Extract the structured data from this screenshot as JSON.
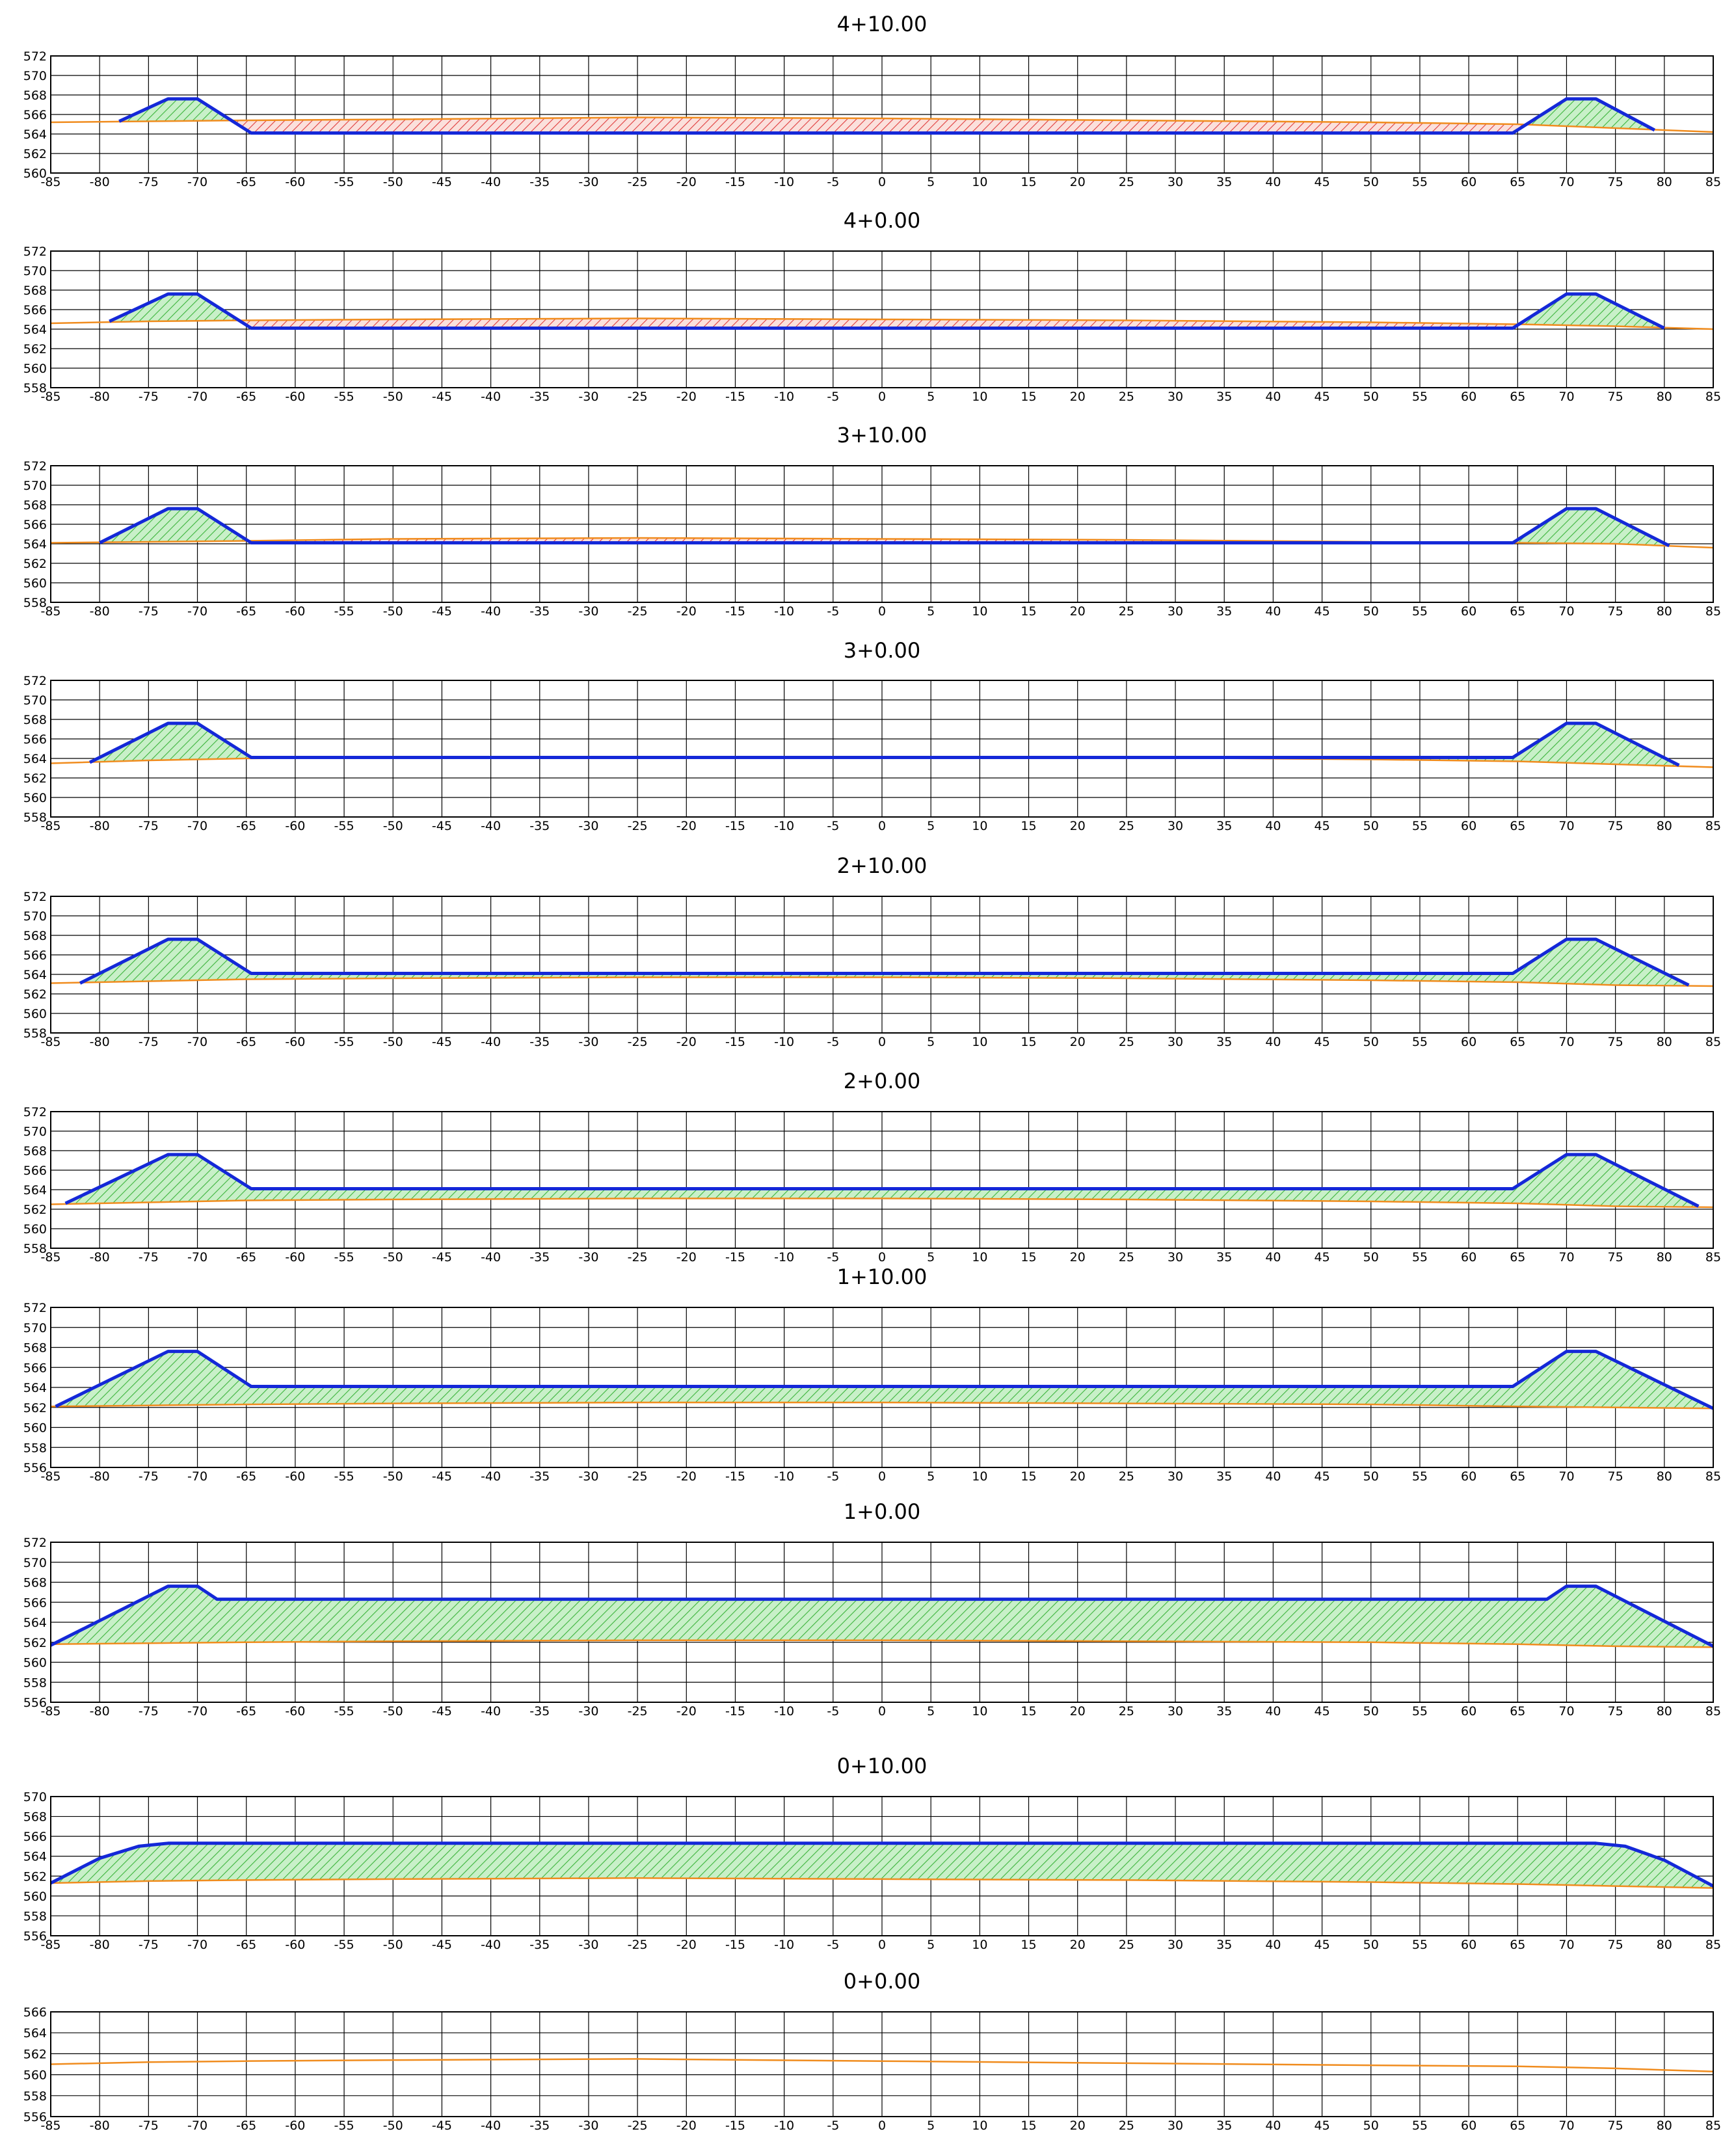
{
  "colors": {
    "design_line": "#1428d8",
    "existing_line": "#f08c1e",
    "fill_hatch": "#3cb43c",
    "fill_bg": "#c8f0c8",
    "cut_hatch": "#e03c3c",
    "cut_bg": "#fbe0dc",
    "grid": "#000000"
  },
  "chart_data": [
    {
      "type": "line",
      "title": "4+10.00",
      "xlim": [
        -85,
        85
      ],
      "ylim": [
        560,
        572
      ],
      "xticks": [
        -85,
        -80,
        -75,
        -70,
        -65,
        -60,
        -55,
        -50,
        -45,
        -40,
        -35,
        -30,
        -25,
        -20,
        -15,
        -10,
        -5,
        0,
        5,
        10,
        15,
        20,
        25,
        30,
        35,
        40,
        45,
        50,
        55,
        60,
        65,
        70,
        75,
        80,
        85
      ],
      "yticks": [
        560,
        562,
        564,
        566,
        568,
        570,
        572
      ],
      "series": [
        {
          "role": "existing",
          "x": [
            -85,
            -75,
            -65,
            -50,
            -25,
            0,
            25,
            50,
            65,
            75,
            85
          ],
          "y": [
            565.2,
            565.3,
            565.4,
            565.5,
            565.7,
            565.6,
            565.4,
            565.2,
            565.0,
            564.6,
            564.2
          ]
        },
        {
          "role": "design",
          "x": [
            -78,
            -73,
            -70,
            -64.5,
            64.5,
            70,
            73,
            79
          ],
          "y": [
            565.3,
            567.6,
            567.6,
            564.1,
            564.1,
            567.6,
            567.6,
            564.4
          ]
        }
      ]
    },
    {
      "type": "line",
      "title": "4+0.00",
      "xlim": [
        -85,
        85
      ],
      "ylim": [
        558,
        572
      ],
      "xticks": [
        -85,
        -80,
        -75,
        -70,
        -65,
        -60,
        -55,
        -50,
        -45,
        -40,
        -35,
        -30,
        -25,
        -20,
        -15,
        -10,
        -5,
        0,
        5,
        10,
        15,
        20,
        25,
        30,
        35,
        40,
        45,
        50,
        55,
        60,
        65,
        70,
        75,
        80,
        85
      ],
      "yticks": [
        558,
        560,
        562,
        564,
        566,
        568,
        570,
        572
      ],
      "series": [
        {
          "role": "existing",
          "x": [
            -85,
            -75,
            -65,
            -50,
            -25,
            0,
            25,
            50,
            65,
            75,
            85
          ],
          "y": [
            564.6,
            564.8,
            564.9,
            565.0,
            565.1,
            565.0,
            564.9,
            564.7,
            564.5,
            564.3,
            564.0
          ]
        },
        {
          "role": "design",
          "x": [
            -79,
            -73,
            -70,
            -64.5,
            64.5,
            70,
            73,
            80
          ],
          "y": [
            564.8,
            567.6,
            567.6,
            564.1,
            564.1,
            567.6,
            567.6,
            564.1
          ]
        }
      ]
    },
    {
      "type": "line",
      "title": "3+10.00",
      "xlim": [
        -85,
        85
      ],
      "ylim": [
        558,
        572
      ],
      "xticks": [
        -85,
        -80,
        -75,
        -70,
        -65,
        -60,
        -55,
        -50,
        -45,
        -40,
        -35,
        -30,
        -25,
        -20,
        -15,
        -10,
        -5,
        0,
        5,
        10,
        15,
        20,
        25,
        30,
        35,
        40,
        45,
        50,
        55,
        60,
        65,
        70,
        75,
        80,
        85
      ],
      "yticks": [
        558,
        560,
        562,
        564,
        566,
        568,
        570,
        572
      ],
      "series": [
        {
          "role": "existing",
          "x": [
            -85,
            -75,
            -65,
            -50,
            -25,
            0,
            25,
            50,
            65,
            75,
            85
          ],
          "y": [
            564.1,
            564.2,
            564.3,
            564.5,
            564.6,
            564.5,
            564.4,
            564.2,
            564.1,
            564.0,
            563.6
          ]
        },
        {
          "role": "design",
          "x": [
            -80,
            -73,
            -70,
            -64.5,
            64.5,
            70,
            73,
            80.5
          ],
          "y": [
            564.1,
            567.6,
            567.6,
            564.1,
            564.1,
            567.6,
            567.6,
            563.8
          ]
        }
      ]
    },
    {
      "type": "line",
      "title": "3+0.00",
      "xlim": [
        -85,
        85
      ],
      "ylim": [
        558,
        572
      ],
      "xticks": [
        -85,
        -80,
        -75,
        -70,
        -65,
        -60,
        -55,
        -50,
        -45,
        -40,
        -35,
        -30,
        -25,
        -20,
        -15,
        -10,
        -5,
        0,
        5,
        10,
        15,
        20,
        25,
        30,
        35,
        40,
        45,
        50,
        55,
        60,
        65,
        70,
        75,
        80,
        85
      ],
      "yticks": [
        558,
        560,
        562,
        564,
        566,
        568,
        570,
        572
      ],
      "series": [
        {
          "role": "existing",
          "x": [
            -85,
            -75,
            -65,
            -50,
            -25,
            0,
            25,
            50,
            65,
            75,
            85
          ],
          "y": [
            563.5,
            563.8,
            564.0,
            564.1,
            564.1,
            564.1,
            564.1,
            563.9,
            563.7,
            563.4,
            563.1
          ]
        },
        {
          "role": "design",
          "x": [
            -81,
            -73,
            -70,
            -64.5,
            64.5,
            70,
            73,
            81.5
          ],
          "y": [
            563.6,
            567.6,
            567.6,
            564.1,
            564.1,
            567.6,
            567.6,
            563.3
          ]
        }
      ]
    },
    {
      "type": "line",
      "title": "2+10.00",
      "xlim": [
        -85,
        85
      ],
      "ylim": [
        558,
        572
      ],
      "xticks": [
        -85,
        -80,
        -75,
        -70,
        -65,
        -60,
        -55,
        -50,
        -45,
        -40,
        -35,
        -30,
        -25,
        -20,
        -15,
        -10,
        -5,
        0,
        5,
        10,
        15,
        20,
        25,
        30,
        35,
        40,
        45,
        50,
        55,
        60,
        65,
        70,
        75,
        80,
        85
      ],
      "yticks": [
        558,
        560,
        562,
        564,
        566,
        568,
        570,
        572
      ],
      "series": [
        {
          "role": "existing",
          "x": [
            -85,
            -75,
            -65,
            -50,
            -25,
            0,
            25,
            50,
            65,
            75,
            85
          ],
          "y": [
            563.1,
            563.3,
            563.5,
            563.6,
            563.7,
            563.7,
            563.6,
            563.4,
            563.2,
            562.9,
            562.8
          ]
        },
        {
          "role": "design",
          "x": [
            -82,
            -73,
            -70,
            -64.5,
            64.5,
            70,
            73,
            82.5
          ],
          "y": [
            563.1,
            567.6,
            567.6,
            564.1,
            564.1,
            567.6,
            567.6,
            562.9
          ]
        }
      ]
    },
    {
      "type": "line",
      "title": "2+0.00",
      "xlim": [
        -85,
        85
      ],
      "ylim": [
        558,
        572
      ],
      "xticks": [
        -85,
        -80,
        -75,
        -70,
        -65,
        -60,
        -55,
        -50,
        -45,
        -40,
        -35,
        -30,
        -25,
        -20,
        -15,
        -10,
        -5,
        0,
        5,
        10,
        15,
        20,
        25,
        30,
        35,
        40,
        45,
        50,
        55,
        60,
        65,
        70,
        75,
        80,
        85
      ],
      "yticks": [
        558,
        560,
        562,
        564,
        566,
        568,
        570,
        572
      ],
      "series": [
        {
          "role": "existing",
          "x": [
            -85,
            -75,
            -65,
            -50,
            -25,
            0,
            25,
            50,
            65,
            75,
            85
          ],
          "y": [
            562.5,
            562.7,
            562.9,
            563.0,
            563.1,
            563.1,
            563.0,
            562.8,
            562.6,
            562.3,
            562.2
          ]
        },
        {
          "role": "design",
          "x": [
            -83.5,
            -73,
            -70,
            -64.5,
            64.5,
            70,
            73,
            83.5
          ],
          "y": [
            562.6,
            567.6,
            567.6,
            564.1,
            564.1,
            567.6,
            567.6,
            562.3
          ]
        }
      ]
    },
    {
      "type": "line",
      "title": "1+10.00",
      "xlim": [
        -85,
        85
      ],
      "ylim": [
        556,
        572
      ],
      "xticks": [
        -85,
        -80,
        -75,
        -70,
        -65,
        -60,
        -55,
        -50,
        -45,
        -40,
        -35,
        -30,
        -25,
        -20,
        -15,
        -10,
        -5,
        0,
        5,
        10,
        15,
        20,
        25,
        30,
        35,
        40,
        45,
        50,
        55,
        60,
        65,
        70,
        75,
        80,
        85
      ],
      "yticks": [
        556,
        558,
        560,
        562,
        564,
        566,
        568,
        570,
        572
      ],
      "series": [
        {
          "role": "existing",
          "x": [
            -85,
            -75,
            -65,
            -50,
            -25,
            0,
            25,
            50,
            65,
            75,
            85
          ],
          "y": [
            562.1,
            562.2,
            562.3,
            562.4,
            562.5,
            562.5,
            562.4,
            562.3,
            562.1,
            562.0,
            561.9
          ]
        },
        {
          "role": "design",
          "x": [
            -84.5,
            -73,
            -70,
            -64.5,
            64.5,
            70,
            73,
            85
          ],
          "y": [
            562.1,
            567.6,
            567.6,
            564.1,
            564.1,
            567.6,
            567.6,
            561.9
          ]
        }
      ]
    },
    {
      "type": "line",
      "title": "1+0.00",
      "xlim": [
        -85,
        85
      ],
      "ylim": [
        556,
        572
      ],
      "xticks": [
        -85,
        -80,
        -75,
        -70,
        -65,
        -60,
        -55,
        -50,
        -45,
        -40,
        -35,
        -30,
        -25,
        -20,
        -15,
        -10,
        -5,
        0,
        5,
        10,
        15,
        20,
        25,
        30,
        35,
        40,
        45,
        50,
        55,
        60,
        65,
        70,
        75,
        80,
        85
      ],
      "yticks": [
        556,
        558,
        560,
        562,
        564,
        566,
        568,
        570,
        572
      ],
      "series": [
        {
          "role": "existing",
          "x": [
            -85,
            -75,
            -65,
            -50,
            -25,
            0,
            25,
            50,
            65,
            75,
            85
          ],
          "y": [
            561.8,
            561.9,
            562.0,
            562.1,
            562.2,
            562.2,
            562.1,
            562.0,
            561.8,
            561.6,
            561.5
          ]
        },
        {
          "role": "design",
          "x": [
            -85,
            -73,
            -70,
            -68,
            68,
            70,
            73,
            85
          ],
          "y": [
            561.7,
            567.6,
            567.6,
            566.3,
            566.3,
            567.6,
            567.6,
            561.6
          ]
        }
      ]
    },
    {
      "type": "line",
      "title": "0+10.00",
      "xlim": [
        -85,
        85
      ],
      "ylim": [
        556,
        570
      ],
      "xticks": [
        -85,
        -80,
        -75,
        -70,
        -65,
        -60,
        -55,
        -50,
        -45,
        -40,
        -35,
        -30,
        -25,
        -20,
        -15,
        -10,
        -5,
        0,
        5,
        10,
        15,
        20,
        25,
        30,
        35,
        40,
        45,
        50,
        55,
        60,
        65,
        70,
        75,
        80,
        85
      ],
      "yticks": [
        556,
        558,
        560,
        562,
        564,
        566,
        568,
        570
      ],
      "series": [
        {
          "role": "existing",
          "x": [
            -85,
            -75,
            -65,
            -50,
            -25,
            0,
            25,
            50,
            65,
            75,
            85
          ],
          "y": [
            561.3,
            561.5,
            561.6,
            561.7,
            561.8,
            561.7,
            561.6,
            561.4,
            561.2,
            561.0,
            560.8
          ]
        },
        {
          "role": "design",
          "x": [
            -85,
            -80,
            -76,
            -73,
            73,
            76,
            80,
            85
          ],
          "y": [
            561.3,
            563.8,
            565.0,
            565.3,
            565.3,
            565.0,
            563.6,
            561.0
          ]
        }
      ]
    },
    {
      "type": "line",
      "title": "0+0.00",
      "xlim": [
        -85,
        85
      ],
      "ylim": [
        556,
        566
      ],
      "xticks": [
        -85,
        -80,
        -75,
        -70,
        -65,
        -60,
        -55,
        -50,
        -45,
        -40,
        -35,
        -30,
        -25,
        -20,
        -15,
        -10,
        -5,
        0,
        5,
        10,
        15,
        20,
        25,
        30,
        35,
        40,
        45,
        50,
        55,
        60,
        65,
        70,
        75,
        80,
        85
      ],
      "yticks": [
        556,
        558,
        560,
        562,
        564,
        566
      ],
      "series": [
        {
          "role": "existing",
          "x": [
            -85,
            -75,
            -65,
            -50,
            -25,
            0,
            25,
            50,
            65,
            75,
            85
          ],
          "y": [
            561.0,
            561.2,
            561.3,
            561.4,
            561.5,
            561.3,
            561.1,
            560.9,
            560.8,
            560.6,
            560.3
          ]
        }
      ]
    }
  ]
}
